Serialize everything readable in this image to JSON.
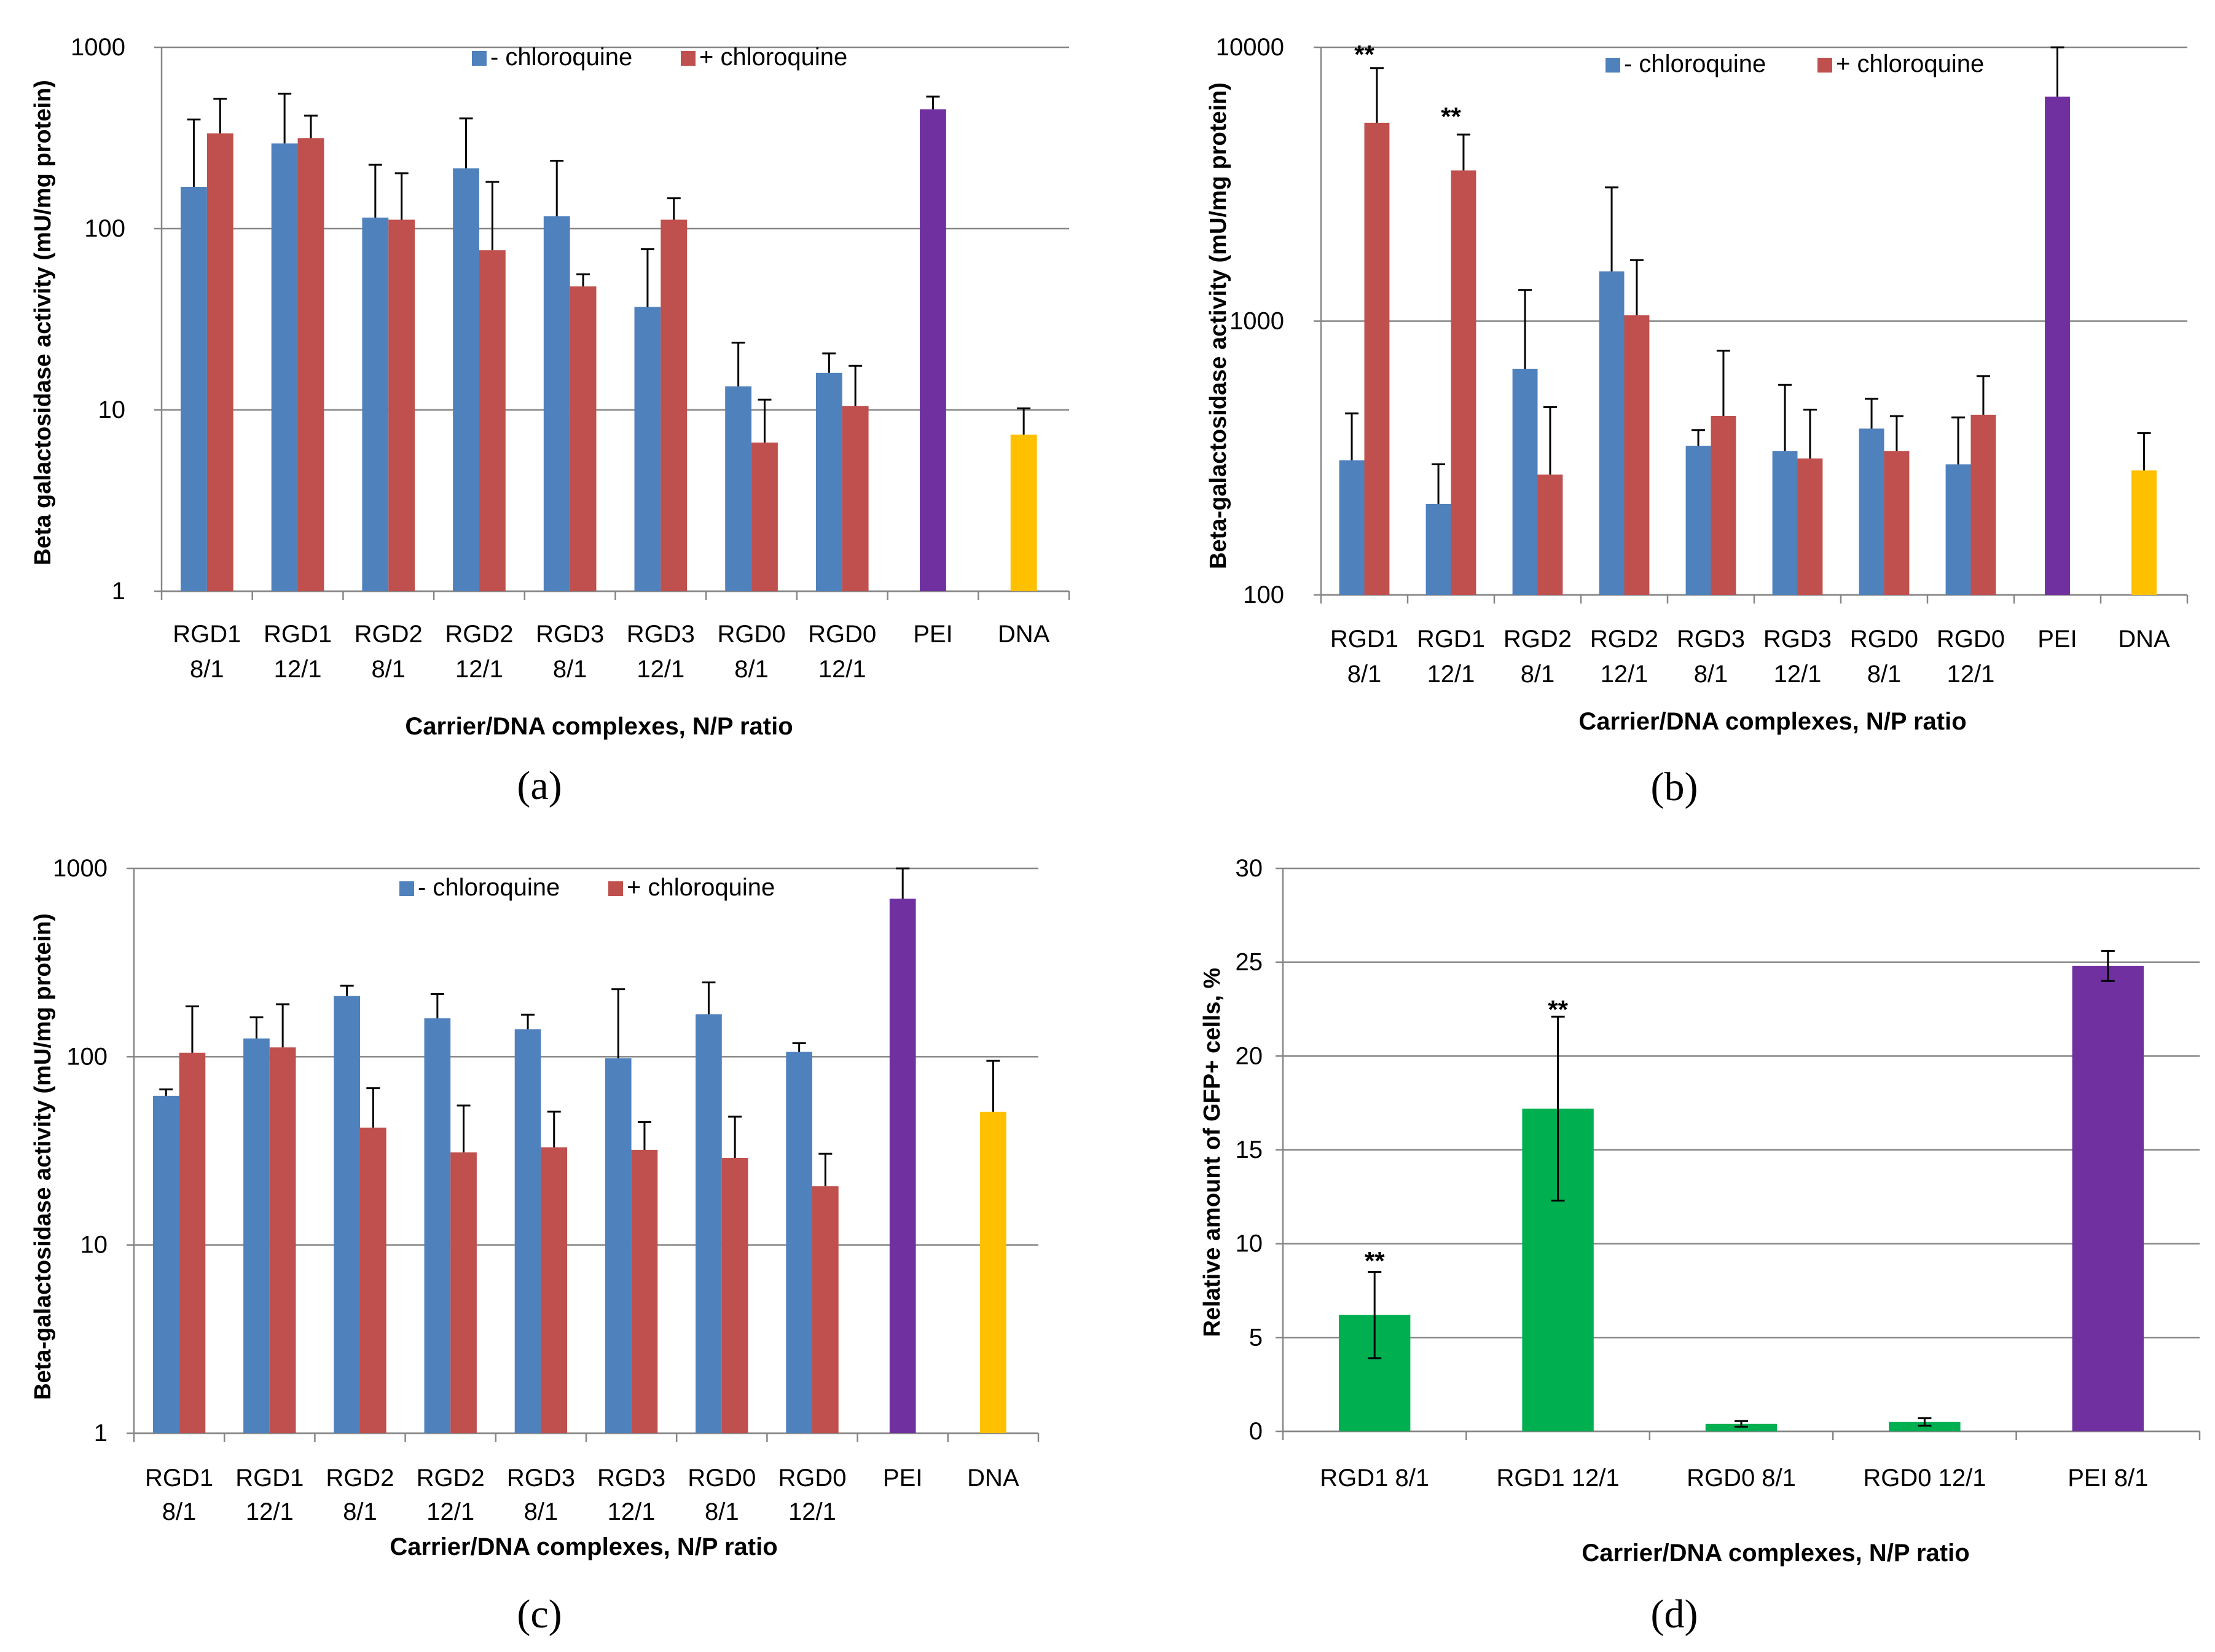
{
  "colors": {
    "minus": "#4F81BD",
    "plus": "#C0504D",
    "pei": "#7030A0",
    "dna": "#FFC000",
    "gfp": "#00B050",
    "grid": "#868686",
    "errorbar": "#000000"
  },
  "chart_data": [
    {
      "panel": "a",
      "type": "bar",
      "scale": "log",
      "ylabel": "Beta galactosidase activity (mU/mg protein)",
      "xlabel": "Carrier/DNA  complexes, N/P ratio",
      "caption": "(a)",
      "legend": [
        "- chloroquine",
        "+ chloroquine"
      ],
      "legend_position": "top",
      "ylim": [
        1,
        1000
      ],
      "yticks": [
        "1",
        "10",
        "100",
        "1000"
      ],
      "categories": [
        {
          "l1": "RGD1",
          "l2": "8/1"
        },
        {
          "l1": "RGD1",
          "l2": "12/1"
        },
        {
          "l1": "RGD2",
          "l2": "8/1"
        },
        {
          "l1": "RGD2",
          "l2": "12/1"
        },
        {
          "l1": "RGD3",
          "l2": "8/1"
        },
        {
          "l1": "RGD3",
          "l2": "12/1"
        },
        {
          "l1": "RGD0",
          "l2": "8/1"
        },
        {
          "l1": "RGD0",
          "l2": "12/1"
        },
        {
          "l1": "PEI",
          "l2": ""
        },
        {
          "l1": "DNA",
          "l2": ""
        }
      ],
      "series": [
        {
          "name": "- chloroquine",
          "color": "minus",
          "values": [
            170,
            295,
            115,
            215,
            117,
            37,
            13.5,
            16,
            null,
            null
          ],
          "err": [
            230,
            260,
            110,
            190,
            120,
            40,
            10,
            4.5,
            null,
            null
          ]
        },
        {
          "name": "+ chloroquine",
          "color": "plus",
          "values": [
            335,
            315,
            112,
            76,
            48,
            112,
            6.6,
            10.5,
            null,
            null
          ],
          "err": [
            185,
            105,
            90,
            105,
            8,
            35,
            4.8,
            7,
            null,
            null
          ]
        }
      ],
      "singles": [
        {
          "index": 8,
          "name": "PEI",
          "color": "pei",
          "value": 455,
          "err": 80
        },
        {
          "index": 9,
          "name": "DNA",
          "color": "dna",
          "value": 7.3,
          "err": 2.9
        }
      ],
      "annotations": []
    },
    {
      "panel": "b",
      "type": "bar",
      "scale": "log",
      "ylabel": "Beta-galactosidase activity (mU/mg protein)",
      "xlabel": "Carrier/DNA  complexes, N/P ratio",
      "caption": "(b)",
      "legend": [
        "- chloroquine",
        "+ chloroquine"
      ],
      "legend_position": "top",
      "ylim": [
        100,
        10000
      ],
      "yticks": [
        "100",
        "1000",
        "10000"
      ],
      "categories": [
        {
          "l1": "RGD1",
          "l2": "8/1"
        },
        {
          "l1": "RGD1",
          "l2": "12/1"
        },
        {
          "l1": "RGD2",
          "l2": "8/1"
        },
        {
          "l1": "RGD2",
          "l2": "12/1"
        },
        {
          "l1": "RGD3",
          "l2": "8/1"
        },
        {
          "l1": "RGD3",
          "l2": "12/1"
        },
        {
          "l1": "RGD0",
          "l2": "8/1"
        },
        {
          "l1": "RGD0",
          "l2": "12/1"
        },
        {
          "l1": "PEI",
          "l2": ""
        },
        {
          "l1": "DNA",
          "l2": ""
        }
      ],
      "series": [
        {
          "name": "- chloroquine",
          "color": "minus",
          "values": [
            310,
            215,
            670,
            1520,
            350,
            335,
            405,
            300,
            null,
            null
          ],
          "err": [
            150,
            85,
            630,
            1560,
            50,
            250,
            115,
            145,
            null,
            null
          ]
        },
        {
          "name": "+ chloroquine",
          "color": "plus",
          "values": [
            5300,
            3550,
            275,
            1050,
            450,
            315,
            335,
            455,
            null,
            null
          ],
          "err": [
            3100,
            1250,
            210,
            620,
            330,
            160,
            115,
            175,
            null,
            null
          ]
        }
      ],
      "singles": [
        {
          "index": 8,
          "name": "PEI",
          "color": "pei",
          "value": 6600,
          "err": 3400
        },
        {
          "index": 9,
          "name": "DNA",
          "color": "dna",
          "value": 285,
          "err": 105
        }
      ],
      "annotations": [
        {
          "index": 0,
          "text": "**",
          "value": 9600
        },
        {
          "index": 1,
          "text": "**",
          "value": 5700
        }
      ]
    },
    {
      "panel": "c",
      "type": "bar",
      "scale": "log",
      "ylabel": "Beta-galactosidase activity (mU/mg protein)",
      "xlabel": "Carrier/DNA  complexes, N/P ratio",
      "caption": "(c)",
      "legend": [
        "- chloroquine",
        "+ chloroquine"
      ],
      "legend_position": "top",
      "ylim": [
        1,
        1000
      ],
      "yticks": [
        "1",
        "10",
        "100",
        "1000"
      ],
      "categories": [
        {
          "l1": "RGD1",
          "l2": "8/1"
        },
        {
          "l1": "RGD1",
          "l2": "12/1"
        },
        {
          "l1": "RGD2",
          "l2": "8/1"
        },
        {
          "l1": "RGD2",
          "l2": "12/1"
        },
        {
          "l1": "RGD3",
          "l2": "8/1"
        },
        {
          "l1": "RGD3",
          "l2": "12/1"
        },
        {
          "l1": "RGD0",
          "l2": "8/1"
        },
        {
          "l1": "RGD0",
          "l2": "12/1"
        },
        {
          "l1": "PEI",
          "l2": ""
        },
        {
          "l1": "DNA",
          "l2": ""
        }
      ],
      "series": [
        {
          "name": "- chloroquine",
          "color": "minus",
          "values": [
            62,
            125,
            210,
            160,
            140,
            98,
            168,
            106,
            null,
            null
          ],
          "err": [
            5,
            37,
            28,
            55,
            27,
            130,
            80,
            12,
            null,
            null
          ]
        },
        {
          "name": "+ chloroquine",
          "color": "plus",
          "values": [
            105,
            112,
            42,
            31,
            33,
            32,
            29,
            20.5,
            null,
            null
          ],
          "err": [
            80,
            78,
            26,
            24,
            18,
            13,
            19,
            10,
            null,
            null
          ]
        }
      ],
      "singles": [
        {
          "index": 8,
          "name": "PEI",
          "color": "pei",
          "value": 690,
          "err": 310
        },
        {
          "index": 9,
          "name": "DNA",
          "color": "dna",
          "value": 51,
          "err": 44
        }
      ],
      "annotations": []
    },
    {
      "panel": "d",
      "type": "bar",
      "scale": "linear",
      "ylabel": "Relative amount of GFP+ cells, %",
      "xlabel": "Carrier/DNA  complexes, N/P ratio",
      "caption": "(d)",
      "ylim": [
        0,
        30
      ],
      "yticks": [
        "0",
        "5",
        "10",
        "15",
        "20",
        "25",
        "30"
      ],
      "categories": [
        "RGD1 8/1",
        "RGD1 12/1",
        "RGD0 8/1",
        "RGD0 12/1",
        "PEI 8/1"
      ],
      "values": [
        6.2,
        17.2,
        0.4,
        0.5,
        24.8
      ],
      "err": [
        2.3,
        4.9,
        0.15,
        0.2,
        0.8
      ],
      "colors": [
        "gfp",
        "gfp",
        "gfp",
        "gfp",
        "pei"
      ],
      "annotations": [
        {
          "index": 0,
          "text": "**",
          "value": 9.2
        },
        {
          "index": 1,
          "text": "**",
          "value": 22.6
        }
      ]
    }
  ]
}
